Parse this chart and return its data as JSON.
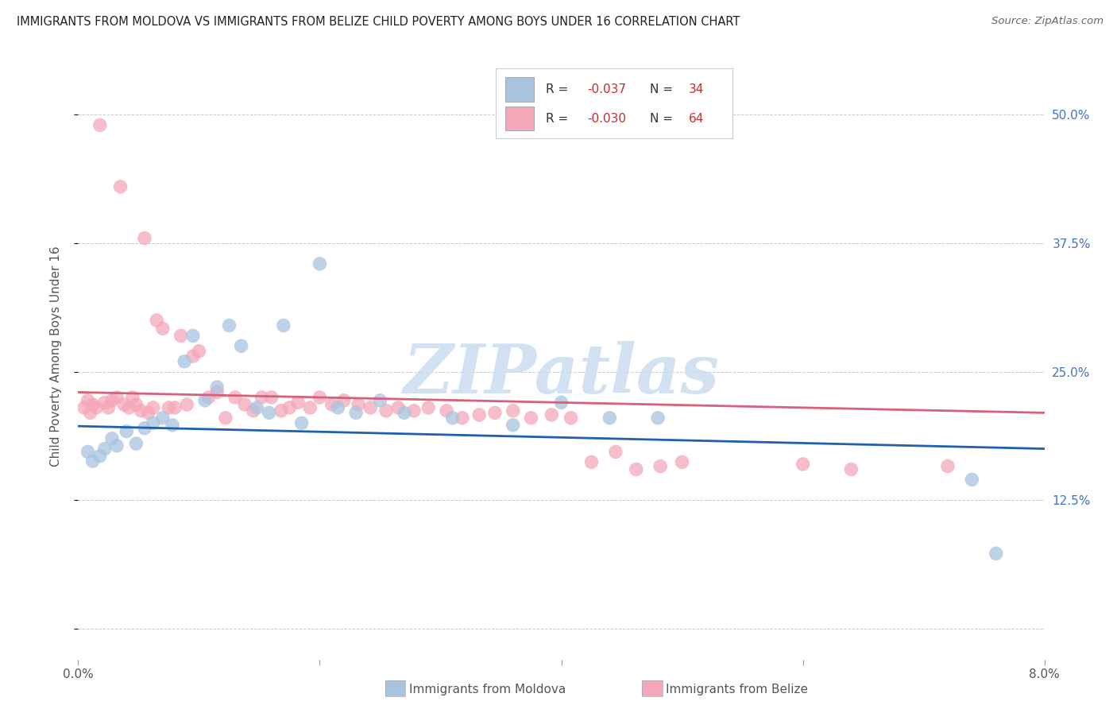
{
  "title": "IMMIGRANTS FROM MOLDOVA VS IMMIGRANTS FROM BELIZE CHILD POVERTY AMONG BOYS UNDER 16 CORRELATION CHART",
  "source": "Source: ZipAtlas.com",
  "ylabel": "Child Poverty Among Boys Under 16",
  "xlim": [
    0.0,
    0.08
  ],
  "ylim": [
    -0.03,
    0.56
  ],
  "yticks": [
    0.0,
    0.125,
    0.25,
    0.375,
    0.5
  ],
  "ytick_labels_right": [
    "",
    "12.5%",
    "25.0%",
    "37.5%",
    "50.0%"
  ],
  "color_moldova": "#a8c4e0",
  "color_belize": "#f4a7b9",
  "trendline_color_moldova": "#2060b0",
  "trendline_color_belize": "#d9607a",
  "legend_R1": "-0.037",
  "legend_N1": "34",
  "legend_R2": "-0.030",
  "legend_N2": "64",
  "legend_label1": "Immigrants from Moldova",
  "legend_label2": "Immigrants from Belize",
  "watermark": "ZIPatlas",
  "watermark_color": "#ccddf0",
  "scatter_moldova_x": [
    0.0008,
    0.0012,
    0.0018,
    0.0022,
    0.0028,
    0.0032,
    0.004,
    0.0048,
    0.0055,
    0.0062,
    0.007,
    0.0078,
    0.0088,
    0.0095,
    0.0105,
    0.0115,
    0.0125,
    0.0135,
    0.0148,
    0.0158,
    0.017,
    0.0185,
    0.02,
    0.0215,
    0.023,
    0.025,
    0.027,
    0.031,
    0.036,
    0.04,
    0.044,
    0.048,
    0.074,
    0.076
  ],
  "scatter_moldova_y": [
    0.172,
    0.163,
    0.168,
    0.175,
    0.185,
    0.178,
    0.192,
    0.18,
    0.195,
    0.2,
    0.205,
    0.198,
    0.26,
    0.285,
    0.222,
    0.235,
    0.295,
    0.275,
    0.215,
    0.21,
    0.295,
    0.2,
    0.355,
    0.215,
    0.21,
    0.222,
    0.21,
    0.205,
    0.198,
    0.22,
    0.205,
    0.205,
    0.145,
    0.073
  ],
  "scatter_belize_x": [
    0.0005,
    0.0008,
    0.001,
    0.0012,
    0.0015,
    0.0018,
    0.0022,
    0.0025,
    0.0028,
    0.0032,
    0.0035,
    0.0038,
    0.0042,
    0.0045,
    0.0048,
    0.0052,
    0.0055,
    0.0058,
    0.0062,
    0.0065,
    0.007,
    0.0075,
    0.008,
    0.0085,
    0.009,
    0.0095,
    0.01,
    0.0108,
    0.0115,
    0.0122,
    0.013,
    0.0138,
    0.0145,
    0.0152,
    0.016,
    0.0168,
    0.0175,
    0.0182,
    0.0192,
    0.02,
    0.021,
    0.022,
    0.0232,
    0.0242,
    0.0255,
    0.0265,
    0.0278,
    0.029,
    0.0305,
    0.0318,
    0.0332,
    0.0345,
    0.036,
    0.0375,
    0.0392,
    0.0408,
    0.0425,
    0.0445,
    0.0462,
    0.0482,
    0.05,
    0.06,
    0.064,
    0.072
  ],
  "scatter_belize_y": [
    0.215,
    0.222,
    0.21,
    0.218,
    0.215,
    0.49,
    0.22,
    0.215,
    0.222,
    0.225,
    0.43,
    0.218,
    0.215,
    0.225,
    0.218,
    0.212,
    0.38,
    0.21,
    0.215,
    0.3,
    0.292,
    0.215,
    0.215,
    0.285,
    0.218,
    0.265,
    0.27,
    0.225,
    0.23,
    0.205,
    0.225,
    0.218,
    0.212,
    0.225,
    0.225,
    0.212,
    0.215,
    0.22,
    0.215,
    0.225,
    0.218,
    0.222,
    0.218,
    0.215,
    0.212,
    0.215,
    0.212,
    0.215,
    0.212,
    0.205,
    0.208,
    0.21,
    0.212,
    0.205,
    0.208,
    0.205,
    0.162,
    0.172,
    0.155,
    0.158,
    0.162,
    0.16,
    0.155,
    0.158
  ],
  "trendline_moldova": [
    0.197,
    0.175
  ],
  "trendline_belize": [
    0.23,
    0.21
  ]
}
